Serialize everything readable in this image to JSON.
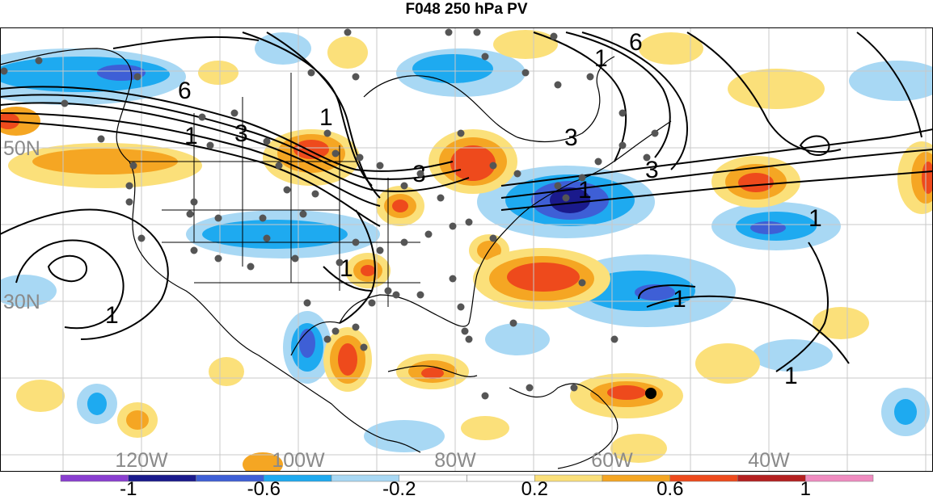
{
  "title": "F048 250 hPa PV",
  "lon_labels": [
    {
      "text": "120W",
      "lon": -120
    },
    {
      "text": "100W",
      "lon": -100
    },
    {
      "text": "80W",
      "lon": -80
    },
    {
      "text": "60W",
      "lon": -60
    },
    {
      "text": "40W",
      "lon": -40
    }
  ],
  "lat_labels": [
    {
      "text": "50N",
      "lat": 50
    },
    {
      "text": "30N",
      "lat": 30
    }
  ],
  "contour_labels": [
    "6",
    "3",
    "1",
    "1",
    "3",
    "6",
    "1",
    "3",
    "1",
    "3",
    "1",
    "1",
    "1",
    "1",
    "1"
  ],
  "colorbar": {
    "labels": [
      "-1",
      "-0.6",
      "-0.2",
      "0.2",
      "0.6",
      "1"
    ],
    "colors": [
      "#8a3fd0",
      "#1a1a8c",
      "#3e5fd6",
      "#1eaaf0",
      "#a8d8f4",
      "#ffffff",
      "#ffffff",
      "#fbe07a",
      "#f5a623",
      "#ee4a1c",
      "#b42020",
      "#f08cc0"
    ]
  },
  "shading_colors": {
    "neg_strong": "#1a1a8c",
    "neg_mid": "#3e5fd6",
    "neg": "#1eaaf0",
    "neg_light": "#a8d8f4",
    "pos_light": "#fbe07a",
    "pos": "#f5a623",
    "pos_mid": "#ee4a1c",
    "pos_strong": "#b42020"
  }
}
